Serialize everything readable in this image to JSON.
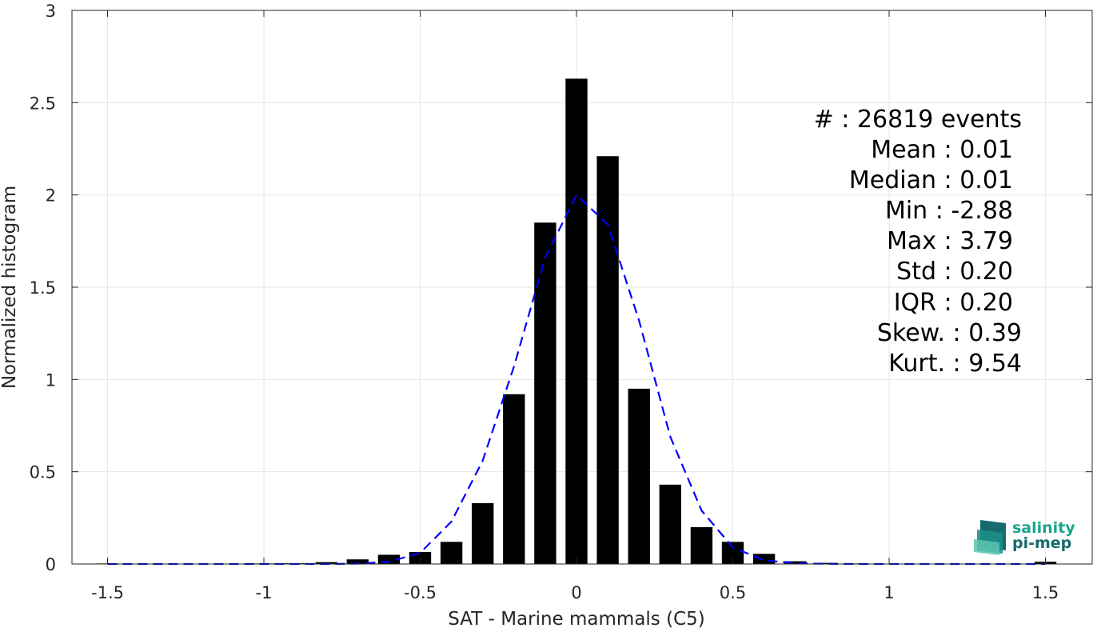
{
  "chart_data": {
    "type": "bar",
    "xlabel": "SAT - Marine mammals (C5)",
    "ylabel": "Normalized histogram",
    "xlim": [
      -1.6,
      1.65
    ],
    "ylim": [
      0,
      3
    ],
    "xticks": [
      -1.5,
      -1,
      -0.5,
      0,
      0.5,
      1,
      1.5
    ],
    "xtick_labels": [
      "-1.5",
      "-1",
      "-0.5",
      "0",
      "0.5",
      "1",
      "1.5"
    ],
    "yticks": [
      0,
      0.5,
      1,
      1.5,
      2,
      2.5,
      3
    ],
    "ytick_labels": [
      "0",
      "0.5",
      "1",
      "1.5",
      "2",
      "2.5",
      "3"
    ],
    "grid": true,
    "bin_width": 0.1,
    "bars": {
      "x": [
        -1.5,
        -1.4,
        -1.3,
        -1.2,
        -1.1,
        -1.0,
        -0.9,
        -0.8,
        -0.7,
        -0.6,
        -0.5,
        -0.4,
        -0.3,
        -0.2,
        -0.1,
        0.0,
        0.1,
        0.2,
        0.3,
        0.4,
        0.5,
        0.6,
        0.7,
        0.8,
        0.9,
        1.0,
        1.1,
        1.2,
        1.3,
        1.4,
        1.5
      ],
      "values": [
        0.003,
        0.001,
        0.001,
        0.001,
        0.002,
        0.003,
        0.004,
        0.01,
        0.025,
        0.05,
        0.065,
        0.12,
        0.33,
        0.92,
        1.85,
        2.63,
        2.21,
        0.95,
        0.43,
        0.2,
        0.12,
        0.055,
        0.015,
        0.006,
        0.003,
        0.002,
        0.001,
        0.001,
        0.001,
        0.001,
        0.012
      ],
      "color": "#000000"
    },
    "fit": {
      "style": "dashed",
      "color": "#0000ff",
      "x": [
        -1.5,
        -1.4,
        -1.3,
        -1.2,
        -1.1,
        -1.0,
        -0.9,
        -0.8,
        -0.7,
        -0.6,
        -0.5,
        -0.4,
        -0.3,
        -0.2,
        -0.1,
        0.0,
        0.1,
        0.2,
        0.3,
        0.4,
        0.5,
        0.6,
        0.7,
        0.8,
        0.9,
        1.0,
        1.1,
        1.2,
        1.3,
        1.4,
        1.5
      ],
      "values": [
        0,
        0,
        0,
        0,
        0,
        0,
        0,
        0,
        0.002,
        0.012,
        0.06,
        0.23,
        0.56,
        1.07,
        1.66,
        2.0,
        1.84,
        1.32,
        0.69,
        0.29,
        0.09,
        0.02,
        0.004,
        0.001,
        0,
        0,
        0,
        0,
        0,
        0,
        0
      ]
    }
  },
  "stats": [
    "#  : 26819 events",
    "Mean : 0.01",
    "Median : 0.01",
    "Min : -2.88",
    "Max : 3.79",
    "Std : 0.20",
    "IQR : 0.20",
    "Skew. : 0.39",
    "Kurt. : 9.54"
  ],
  "logo": {
    "line1": "salinity",
    "line2": "pi-mep",
    "color_primary": "#1aa58c",
    "color_dark": "#156b6e"
  }
}
